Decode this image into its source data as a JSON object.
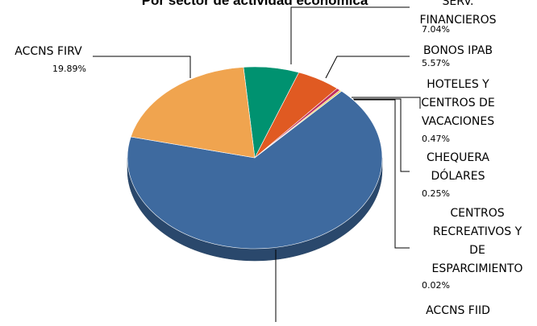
{
  "chart_data": {
    "type": "pie",
    "title": "Por sector de actividad económica",
    "slices": [
      {
        "name": "SERV. FINANCIEROS",
        "lines": [
          "SERV.",
          "FINANCIEROS"
        ],
        "value": 7.04,
        "value_label": "7.04%",
        "color": "#009270"
      },
      {
        "name": "BONOS IPAB",
        "lines": [
          "BONOS IPAB"
        ],
        "value": 5.57,
        "value_label": "5.57%",
        "color": "#E05A22"
      },
      {
        "name": "HOTELES Y CENTROS DE VACACIONES",
        "lines": [
          "HOTELES Y",
          "CENTROS DE",
          "VACACIONES"
        ],
        "value": 0.47,
        "value_label": "0.47%",
        "color": "#C0305F"
      },
      {
        "name": "CHEQUERA DÓLARES",
        "lines": [
          "CHEQUERA",
          "DÓLARES"
        ],
        "value": 0.25,
        "value_label": "0.25%",
        "color": "#E9C94A"
      },
      {
        "name": "CENTROS RECREATIVOS Y DE ESPARCIMIENTO",
        "lines": [
          "CENTROS",
          "RECREATIVOS Y",
          "DE",
          "ESPARCIMIENTO"
        ],
        "value": 0.02,
        "value_label": "0.02%",
        "color": "#7EA0D0"
      },
      {
        "name": "ACCNS FIID",
        "lines": [
          "ACCNS FIID"
        ],
        "value": 66.76,
        "value_label": "",
        "color": "#3E6A9F"
      },
      {
        "name": "ACCNS FIRV",
        "lines": [
          "ACCNS FIRV"
        ],
        "value": 19.89,
        "value_label": "19.89%",
        "color": "#F0A44F"
      }
    ]
  }
}
